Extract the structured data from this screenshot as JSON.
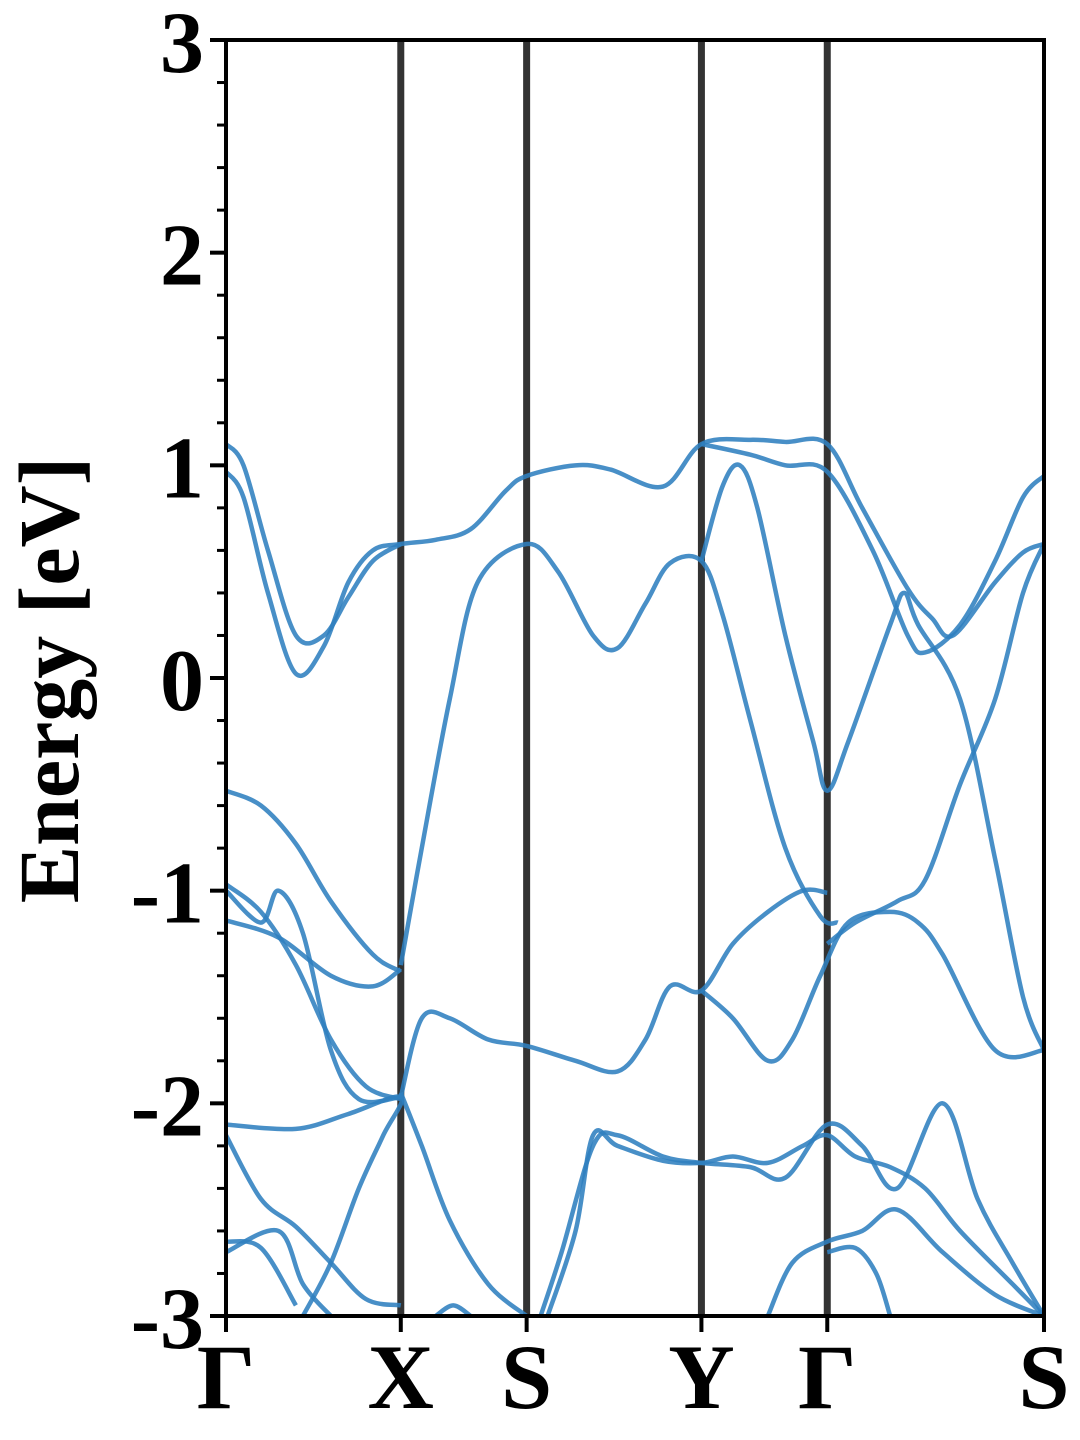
{
  "chart_data": {
    "type": "line",
    "title": "",
    "ylabel": "Energy [eV]",
    "xlabel": "",
    "ylim": [
      -3,
      3
    ],
    "yticks": [
      "-3",
      "-2",
      "-1",
      "0",
      "1",
      "2",
      "3"
    ],
    "kpath": [
      {
        "label": "Γ",
        "x": 0.0
      },
      {
        "label": "X",
        "x": 0.5
      },
      {
        "label": "S",
        "x": 0.86
      },
      {
        "label": "Y",
        "x": 1.36
      },
      {
        "label": "Γ",
        "x": 1.72
      },
      {
        "label": "S",
        "x": 2.34
      }
    ],
    "xlim": [
      0,
      2.34
    ],
    "grid": false,
    "legend": "none",
    "colors": {
      "bands": "#2f7fbf",
      "kpoint_lines": "#333333",
      "axes": "#000000"
    },
    "series": [
      {
        "values": [
          [
            0.0,
            0.97
          ],
          [
            0.05,
            0.85
          ],
          [
            0.12,
            0.4
          ],
          [
            0.2,
            0.02
          ],
          [
            0.28,
            0.15
          ],
          [
            0.35,
            0.45
          ],
          [
            0.42,
            0.6
          ],
          [
            0.5,
            0.63
          ],
          [
            0.6,
            0.65
          ],
          [
            0.7,
            0.7
          ],
          [
            0.8,
            0.88
          ],
          [
            0.86,
            0.95
          ],
          [
            1.0,
            1.0
          ],
          [
            1.1,
            0.98
          ],
          [
            1.25,
            0.9
          ],
          [
            1.36,
            1.1
          ],
          [
            1.5,
            1.12
          ],
          [
            1.6,
            1.11
          ],
          [
            1.72,
            1.1
          ],
          [
            1.82,
            0.8
          ],
          [
            1.95,
            0.42
          ],
          [
            2.02,
            0.28
          ],
          [
            2.08,
            0.2
          ],
          [
            2.2,
            0.45
          ],
          [
            2.28,
            0.59
          ],
          [
            2.34,
            0.63
          ]
        ]
      },
      {
        "values": [
          [
            0.0,
            1.1
          ],
          [
            0.05,
            1.0
          ],
          [
            0.12,
            0.6
          ],
          [
            0.2,
            0.2
          ],
          [
            0.28,
            0.2
          ],
          [
            0.35,
            0.38
          ],
          [
            0.42,
            0.55
          ],
          [
            0.5,
            0.63
          ]
        ]
      },
      {
        "values": [
          [
            1.36,
            1.1
          ],
          [
            1.5,
            1.05
          ],
          [
            1.6,
            1.0
          ],
          [
            1.72,
            0.97
          ],
          [
            1.85,
            0.6
          ],
          [
            1.95,
            0.2
          ],
          [
            2.0,
            0.12
          ],
          [
            2.1,
            0.25
          ],
          [
            2.2,
            0.55
          ],
          [
            2.28,
            0.85
          ],
          [
            2.34,
            0.95
          ]
        ]
      },
      {
        "values": [
          [
            0.5,
            -1.35
          ],
          [
            0.56,
            -0.8
          ],
          [
            0.64,
            -0.1
          ],
          [
            0.72,
            0.45
          ],
          [
            0.86,
            0.63
          ],
          [
            0.95,
            0.5
          ],
          [
            1.05,
            0.2
          ],
          [
            1.12,
            0.14
          ],
          [
            1.2,
            0.35
          ],
          [
            1.27,
            0.54
          ],
          [
            1.36,
            0.55
          ],
          [
            1.42,
            0.3
          ],
          [
            1.5,
            -0.2
          ],
          [
            1.6,
            -0.8
          ],
          [
            1.7,
            -1.12
          ],
          [
            1.75,
            -1.15
          ]
        ]
      },
      {
        "values": [
          [
            1.36,
            0.55
          ],
          [
            1.42,
            0.9
          ],
          [
            1.47,
            1.0
          ],
          [
            1.52,
            0.8
          ],
          [
            1.6,
            0.2
          ],
          [
            1.68,
            -0.3
          ],
          [
            1.72,
            -0.53
          ],
          [
            1.78,
            -0.3
          ],
          [
            1.9,
            0.25
          ],
          [
            1.94,
            0.4
          ],
          [
            1.98,
            0.25
          ],
          [
            2.1,
            -0.1
          ],
          [
            2.2,
            -0.85
          ],
          [
            2.28,
            -1.5
          ],
          [
            2.34,
            -1.75
          ]
        ]
      },
      {
        "values": [
          [
            0.0,
            -0.53
          ],
          [
            0.1,
            -0.6
          ],
          [
            0.2,
            -0.78
          ],
          [
            0.3,
            -1.05
          ],
          [
            0.42,
            -1.3
          ],
          [
            0.5,
            -1.38
          ]
        ]
      },
      {
        "values": [
          [
            0.0,
            -1.14
          ],
          [
            0.15,
            -1.22
          ],
          [
            0.3,
            -1.4
          ],
          [
            0.42,
            -1.45
          ],
          [
            0.5,
            -1.37
          ]
        ]
      },
      {
        "values": [
          [
            1.36,
            -1.47
          ],
          [
            1.45,
            -1.6
          ],
          [
            1.55,
            -1.8
          ],
          [
            1.62,
            -1.7
          ],
          [
            1.7,
            -1.4
          ],
          [
            1.78,
            -1.15
          ],
          [
            1.9,
            -1.1
          ],
          [
            1.98,
            -1.15
          ],
          [
            2.05,
            -1.3
          ],
          [
            2.2,
            -1.75
          ],
          [
            2.34,
            -1.75
          ]
        ]
      },
      {
        "values": [
          [
            1.72,
            -1.25
          ],
          [
            1.8,
            -1.15
          ],
          [
            1.92,
            -1.05
          ],
          [
            2.0,
            -0.95
          ],
          [
            2.1,
            -0.5
          ],
          [
            2.2,
            -0.1
          ],
          [
            2.28,
            0.4
          ],
          [
            2.34,
            0.63
          ]
        ]
      },
      {
        "values": [
          [
            0.0,
            -0.97
          ],
          [
            0.1,
            -1.1
          ],
          [
            0.2,
            -1.35
          ],
          [
            0.3,
            -1.7
          ],
          [
            0.4,
            -1.92
          ],
          [
            0.5,
            -1.98
          ]
        ]
      },
      {
        "values": [
          [
            0.0,
            -1.0
          ],
          [
            0.1,
            -1.15
          ],
          [
            0.15,
            -1.0
          ],
          [
            0.22,
            -1.2
          ],
          [
            0.3,
            -1.75
          ],
          [
            0.38,
            -1.98
          ],
          [
            0.5,
            -1.97
          ]
        ]
      },
      {
        "values": [
          [
            0.5,
            -1.97
          ],
          [
            0.56,
            -1.6
          ],
          [
            0.64,
            -1.6
          ],
          [
            0.75,
            -1.7
          ],
          [
            0.86,
            -1.73
          ],
          [
            1.0,
            -1.8
          ],
          [
            1.12,
            -1.85
          ],
          [
            1.2,
            -1.7
          ],
          [
            1.27,
            -1.45
          ],
          [
            1.36,
            -1.47
          ],
          [
            1.45,
            -1.25
          ],
          [
            1.55,
            -1.1
          ],
          [
            1.65,
            -1.0
          ],
          [
            1.72,
            -1.01
          ]
        ]
      },
      {
        "values": [
          [
            0.5,
            -1.95
          ],
          [
            0.56,
            -2.2
          ],
          [
            0.64,
            -2.55
          ],
          [
            0.75,
            -2.85
          ],
          [
            0.86,
            -3.0
          ]
        ]
      },
      {
        "values": [
          [
            0.0,
            -2.1
          ],
          [
            0.2,
            -2.12
          ],
          [
            0.35,
            -2.05
          ],
          [
            0.5,
            -1.97
          ],
          [
            0.45,
            -2.15
          ],
          [
            0.38,
            -2.4
          ],
          [
            0.3,
            -2.75
          ],
          [
            0.22,
            -3.0
          ]
        ]
      },
      {
        "values": [
          [
            0.0,
            -2.15
          ],
          [
            0.1,
            -2.45
          ],
          [
            0.2,
            -2.58
          ],
          [
            0.3,
            -2.75
          ],
          [
            0.4,
            -2.92
          ],
          [
            0.5,
            -2.95
          ]
        ]
      },
      {
        "values": [
          [
            0.0,
            -2.65
          ],
          [
            0.1,
            -2.68
          ],
          [
            0.2,
            -2.95
          ]
        ]
      },
      {
        "values": [
          [
            0.0,
            -2.7
          ],
          [
            0.15,
            -2.6
          ],
          [
            0.22,
            -2.85
          ],
          [
            0.3,
            -3.0
          ]
        ]
      },
      {
        "values": [
          [
            0.9,
            -3.0
          ],
          [
            0.96,
            -2.7
          ],
          [
            1.05,
            -2.2
          ],
          [
            1.12,
            -2.15
          ],
          [
            1.25,
            -2.25
          ],
          [
            1.36,
            -2.28
          ],
          [
            1.5,
            -2.3
          ],
          [
            1.6,
            -2.35
          ],
          [
            1.72,
            -2.1
          ],
          [
            1.82,
            -2.2
          ],
          [
            1.92,
            -2.4
          ],
          [
            2.05,
            -2.0
          ],
          [
            2.15,
            -2.45
          ],
          [
            2.25,
            -2.75
          ],
          [
            2.34,
            -3.0
          ]
        ]
      },
      {
        "values": [
          [
            0.92,
            -3.0
          ],
          [
            1.0,
            -2.6
          ],
          [
            1.05,
            -2.15
          ],
          [
            1.12,
            -2.2
          ],
          [
            1.25,
            -2.27
          ],
          [
            1.36,
            -2.28
          ],
          [
            1.45,
            -2.25
          ],
          [
            1.55,
            -2.28
          ],
          [
            1.65,
            -2.2
          ],
          [
            1.72,
            -2.15
          ],
          [
            1.8,
            -2.25
          ],
          [
            1.9,
            -2.3
          ],
          [
            2.0,
            -2.4
          ],
          [
            2.1,
            -2.6
          ],
          [
            2.25,
            -2.85
          ],
          [
            2.34,
            -3.0
          ]
        ]
      },
      {
        "values": [
          [
            1.55,
            -3.0
          ],
          [
            1.62,
            -2.75
          ],
          [
            1.72,
            -2.65
          ],
          [
            1.82,
            -2.6
          ],
          [
            1.92,
            -2.5
          ],
          [
            2.05,
            -2.7
          ],
          [
            2.2,
            -2.9
          ],
          [
            2.34,
            -3.0
          ]
        ]
      },
      {
        "values": [
          [
            1.72,
            -2.7
          ],
          [
            1.8,
            -2.68
          ],
          [
            1.86,
            -2.8
          ],
          [
            1.9,
            -3.0
          ]
        ]
      },
      {
        "values": [
          [
            0.6,
            -3.0
          ],
          [
            0.65,
            -2.95
          ],
          [
            0.7,
            -3.0
          ]
        ]
      }
    ]
  }
}
